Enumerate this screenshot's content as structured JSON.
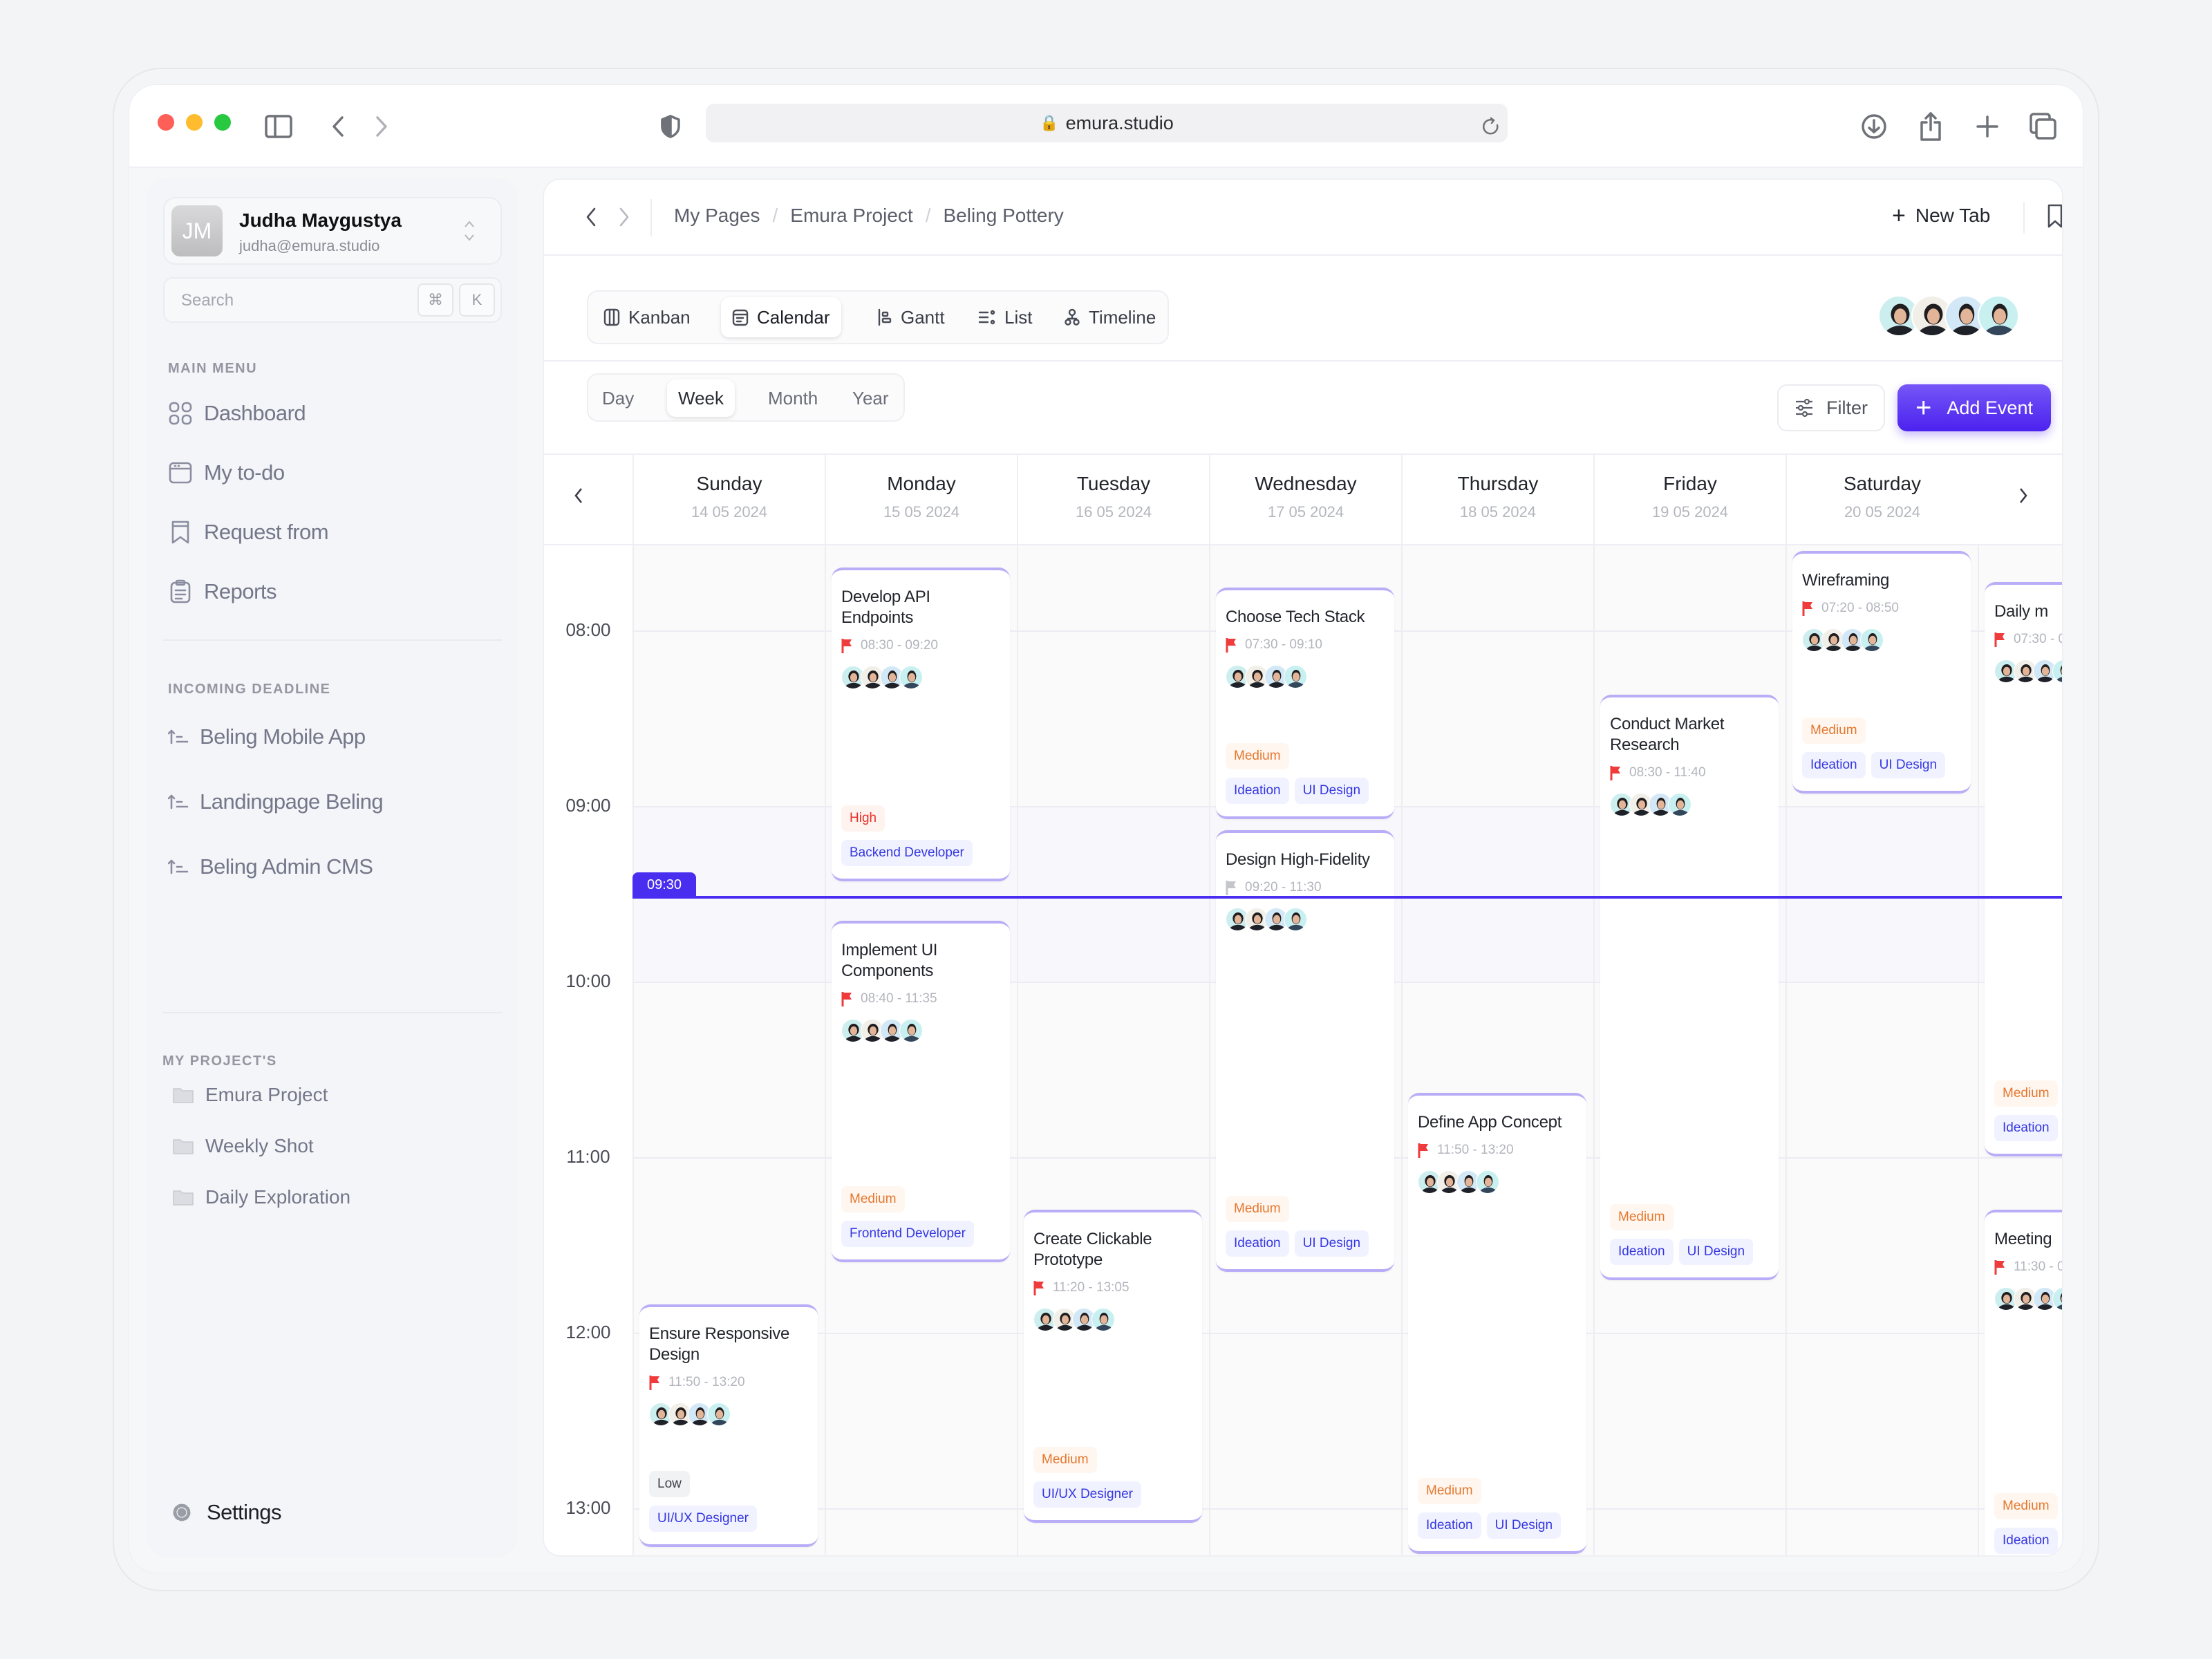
{
  "browser": {
    "url": "emura.studio"
  },
  "colors": {
    "accent": "#4a2ef0",
    "medium": "#e5782f",
    "high": "#e83128",
    "role": "#3437e0"
  },
  "sidebar": {
    "user": {
      "initials": "JM",
      "name": "Judha Maygustya",
      "email": "judha@emura.studio"
    },
    "search": {
      "placeholder": "Search",
      "kbd_cmd": "⌘",
      "kbd_key": "K"
    },
    "main_menu": {
      "label": "MAIN MENU",
      "items": [
        {
          "label": "Dashboard",
          "icon": "grid-icon"
        },
        {
          "label": "My to-do",
          "icon": "calendar-icon"
        },
        {
          "label": "Request from",
          "icon": "bookmark-icon"
        },
        {
          "label": "Reports",
          "icon": "clipboard-icon"
        }
      ]
    },
    "deadlines": {
      "label": "INCOMING DEADLINE",
      "items": [
        {
          "label": "Beling Mobile App"
        },
        {
          "label": "Landingpage Beling"
        },
        {
          "label": "Beling Admin CMS"
        }
      ]
    },
    "projects": {
      "label": "MY PROJECT'S",
      "items": [
        {
          "label": "Emura Project"
        },
        {
          "label": "Weekly Shot"
        },
        {
          "label": "Daily Exploration"
        }
      ]
    },
    "settings": "Settings"
  },
  "header": {
    "breadcrumb": [
      "My Pages",
      "Emura Project",
      "Beling Pottery"
    ],
    "separator": "/",
    "new_tab": "New Tab"
  },
  "views": {
    "tabs": [
      {
        "label": "Kanban",
        "active": false
      },
      {
        "label": "Calendar",
        "active": true
      },
      {
        "label": "Gantt",
        "active": false
      },
      {
        "label": "List",
        "active": false
      },
      {
        "label": "Timeline",
        "active": false
      }
    ]
  },
  "ranges": {
    "tabs": [
      {
        "label": "Day",
        "active": false
      },
      {
        "label": "Week",
        "active": true
      },
      {
        "label": "Month",
        "active": false
      },
      {
        "label": "Year",
        "active": false
      }
    ]
  },
  "toolbar": {
    "filter": "Filter",
    "add_event": "Add Event"
  },
  "calendar": {
    "days": [
      {
        "name": "Sunday",
        "date": "14 05 2024"
      },
      {
        "name": "Monday",
        "date": "15 05 2024"
      },
      {
        "name": "Tuesday",
        "date": "16 05 2024"
      },
      {
        "name": "Wednesday",
        "date": "17 05 2024"
      },
      {
        "name": "Thursday",
        "date": "18 05 2024"
      },
      {
        "name": "Friday",
        "date": "19 05 2024"
      },
      {
        "name": "Saturday",
        "date": "20 05 2024"
      }
    ],
    "hours": [
      "08:00",
      "09:00",
      "10:00",
      "11:00",
      "12:00",
      "13:00"
    ],
    "now": "09:30",
    "events": [
      {
        "day": 0,
        "title": "Ensure Responsive Design",
        "time": "11:50 - 13:20",
        "flag": "red",
        "priority": "Low",
        "tags": [
          "UI/UX Designer"
        ]
      },
      {
        "day": 1,
        "title": "Develop API Endpoints",
        "time": "08:30 - 09:20",
        "flag": "red",
        "priority": "High",
        "tags": [
          "Backend Developer"
        ]
      },
      {
        "day": 1,
        "title": "Implement UI Components",
        "time": "08:40 - 11:35",
        "flag": "red",
        "priority": "Medium",
        "tags": [
          "Frontend Developer"
        ]
      },
      {
        "day": 2,
        "title": "Create Clickable Prototype",
        "time": "11:20 - 13:05",
        "flag": "red",
        "priority": "Medium",
        "tags": [
          "UI/UX Designer"
        ]
      },
      {
        "day": 3,
        "title": "Choose Tech Stack",
        "time": "07:30 - 09:10",
        "flag": "red",
        "priority": "Medium",
        "tags": [
          "Ideation",
          "UI Design"
        ]
      },
      {
        "day": 3,
        "title": "Design High-Fidelity",
        "time": "09:20 - 11:30",
        "flag": "gray",
        "priority": "Medium",
        "tags": [
          "Ideation",
          "UI Design"
        ]
      },
      {
        "day": 4,
        "title": "Define App Concept",
        "time": "11:50 - 13:20",
        "flag": "red",
        "priority": "Medium",
        "tags": [
          "Ideation",
          "UI Design"
        ]
      },
      {
        "day": 5,
        "title": "Conduct Market Research",
        "time": "08:30 - 11:40",
        "flag": "red",
        "priority": "Medium",
        "tags": [
          "Ideation",
          "UI Design"
        ]
      },
      {
        "day": 6,
        "title": "Wireframing",
        "time": "07:20 - 08:50",
        "flag": "red",
        "priority": "Medium",
        "tags": [
          "Ideation",
          "UI Design"
        ]
      },
      {
        "day": 7,
        "title": "Daily m",
        "time": "07:30 - 0",
        "flag": "red",
        "priority": "Medium",
        "tags": [
          "Ideation"
        ]
      },
      {
        "day": 7,
        "title": "Meeting",
        "time": "11:30 - 0",
        "flag": "red",
        "priority": "Medium",
        "tags": [
          "Ideation"
        ]
      }
    ]
  }
}
